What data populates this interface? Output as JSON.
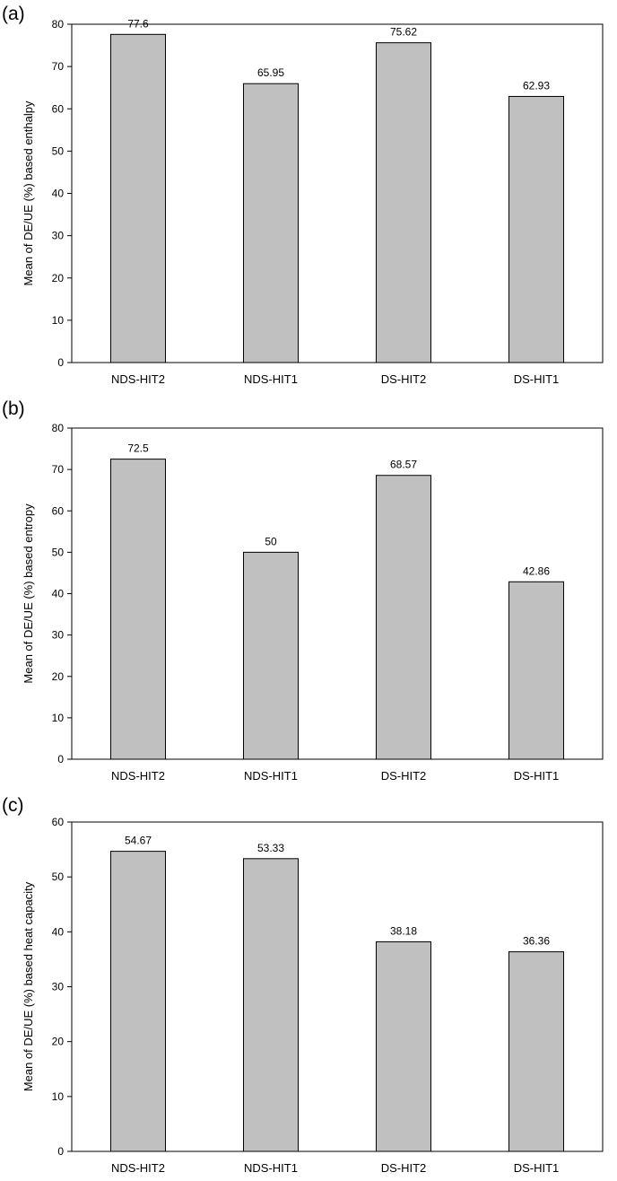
{
  "chart_data": [
    {
      "panel_label": "(a)",
      "type": "bar",
      "categories": [
        "NDS-HIT2",
        "NDS-HIT1",
        "DS-HIT2",
        "DS-HIT1"
      ],
      "values": [
        77.6,
        65.95,
        75.62,
        62.93
      ],
      "value_labels": [
        "77.6",
        "65.95",
        "75.62",
        "62.93"
      ],
      "ylabel": "Mean of DE/UE (%) based enthalpy",
      "xlabel": "",
      "ylim": [
        0,
        80
      ],
      "yticks": [
        0,
        10,
        20,
        30,
        40,
        50,
        60,
        70,
        80
      ],
      "bar_color": "#c0c0c0"
    },
    {
      "panel_label": "(b)",
      "type": "bar",
      "categories": [
        "NDS-HIT2",
        "NDS-HIT1",
        "DS-HIT2",
        "DS-HIT1"
      ],
      "values": [
        72.5,
        50,
        68.57,
        42.86
      ],
      "value_labels": [
        "72.5",
        "50",
        "68.57",
        "42.86"
      ],
      "ylabel": "Mean of DE/UE (%) based entropy",
      "xlabel": "",
      "ylim": [
        0,
        80
      ],
      "yticks": [
        0,
        10,
        20,
        30,
        40,
        50,
        60,
        70,
        80
      ],
      "bar_color": "#c0c0c0"
    },
    {
      "panel_label": "(c)",
      "type": "bar",
      "categories": [
        "NDS-HIT2",
        "NDS-HIT1",
        "DS-HIT2",
        "DS-HIT1"
      ],
      "values": [
        54.67,
        53.33,
        38.18,
        36.36
      ],
      "value_labels": [
        "54.67",
        "53.33",
        "38.18",
        "36.36"
      ],
      "ylabel": "Mean of DE/UE (%) based heat capacity",
      "xlabel": "",
      "ylim": [
        0,
        60
      ],
      "yticks": [
        0,
        10,
        20,
        30,
        40,
        50,
        60
      ],
      "bar_color": "#c0c0c0"
    }
  ]
}
